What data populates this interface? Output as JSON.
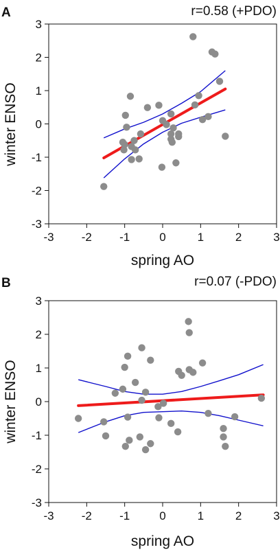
{
  "chart_data": [
    {
      "type": "scatter",
      "panel_label": "A",
      "annotation": "r=0.58 (+PDO)",
      "xlabel": "spring AO",
      "ylabel": "winter ENSO",
      "xlim": [
        -3,
        3
      ],
      "ylim": [
        -3,
        3
      ],
      "xticks": [
        "-3",
        "-2",
        "-1",
        "0",
        "1",
        "2",
        "3"
      ],
      "yticks": [
        "-3",
        "-2",
        "-1",
        "0",
        "1",
        "2",
        "3"
      ],
      "grid": false,
      "points": [
        [
          -1.55,
          -1.88
        ],
        [
          -1.05,
          -0.55
        ],
        [
          -1.02,
          -0.78
        ],
        [
          -1.0,
          -0.62
        ],
        [
          -0.98,
          0.26
        ],
        [
          -0.95,
          -0.1
        ],
        [
          -0.85,
          0.83
        ],
        [
          -0.82,
          -0.68
        ],
        [
          -0.82,
          -1.07
        ],
        [
          -0.75,
          -0.5
        ],
        [
          -0.72,
          -0.78
        ],
        [
          -0.62,
          -1.05
        ],
        [
          -0.58,
          -0.3
        ],
        [
          -0.4,
          0.49
        ],
        [
          -0.1,
          0.56
        ],
        [
          -0.02,
          -1.3
        ],
        [
          0.0,
          0.1
        ],
        [
          0.1,
          -0.02
        ],
        [
          0.22,
          0.3
        ],
        [
          0.22,
          -0.3
        ],
        [
          0.22,
          -0.46
        ],
        [
          0.25,
          -0.55
        ],
        [
          0.28,
          -0.12
        ],
        [
          0.35,
          -1.17
        ],
        [
          0.42,
          -0.3
        ],
        [
          0.42,
          -0.38
        ],
        [
          0.8,
          2.62
        ],
        [
          0.85,
          0.57
        ],
        [
          0.95,
          0.85
        ],
        [
          1.05,
          0.13
        ],
        [
          1.2,
          0.22
        ],
        [
          1.3,
          2.16
        ],
        [
          1.38,
          2.1
        ],
        [
          1.5,
          1.28
        ],
        [
          1.65,
          -0.37
        ]
      ],
      "fit": {
        "x": [
          -1.55,
          1.65
        ],
        "y": [
          -1.02,
          1.05
        ]
      },
      "ci_upper": {
        "x": [
          -1.55,
          -1.0,
          -0.5,
          0.0,
          0.5,
          1.0,
          1.65
        ],
        "y": [
          -0.42,
          -0.15,
          0.05,
          0.3,
          0.62,
          0.97,
          1.6
        ]
      },
      "ci_lower": {
        "x": [
          -1.55,
          -1.0,
          -0.5,
          0.0,
          0.5,
          1.0,
          1.65
        ],
        "y": [
          -1.62,
          -1.05,
          -0.6,
          -0.25,
          0.02,
          0.2,
          0.42
        ]
      },
      "colors": {
        "points": "#8c8c8c",
        "fit": "#ee1b1b",
        "ci": "#1010cc"
      }
    },
    {
      "type": "scatter",
      "panel_label": "B",
      "annotation": "r=0.07 (-PDO)",
      "xlabel": "spring AO",
      "ylabel": "winter ENSO",
      "xlim": [
        -3,
        3
      ],
      "ylim": [
        -3,
        3
      ],
      "xticks": [
        "-3",
        "-2",
        "-1",
        "0",
        "1",
        "2",
        "3"
      ],
      "yticks": [
        "-3",
        "-2",
        "-1",
        "0",
        "1",
        "2",
        "3"
      ],
      "grid": false,
      "points": [
        [
          -2.22,
          -0.5
        ],
        [
          -1.55,
          -0.6
        ],
        [
          -1.5,
          -1.02
        ],
        [
          -1.25,
          0.25
        ],
        [
          -1.05,
          0.37
        ],
        [
          -1.0,
          1.02
        ],
        [
          -0.98,
          -1.33
        ],
        [
          -0.92,
          1.35
        ],
        [
          -0.92,
          -0.46
        ],
        [
          -0.88,
          -1.15
        ],
        [
          -0.72,
          0.57
        ],
        [
          -0.6,
          -1.05
        ],
        [
          -0.55,
          1.6
        ],
        [
          -0.55,
          0.04
        ],
        [
          -0.45,
          0.28
        ],
        [
          -0.45,
          -1.43
        ],
        [
          -0.32,
          1.23
        ],
        [
          -0.32,
          -1.25
        ],
        [
          -0.12,
          -0.15
        ],
        [
          -0.1,
          -0.48
        ],
        [
          0.02,
          -0.05
        ],
        [
          0.22,
          -0.65
        ],
        [
          0.4,
          -0.9
        ],
        [
          0.42,
          0.9
        ],
        [
          0.5,
          0.78
        ],
        [
          0.68,
          2.38
        ],
        [
          0.7,
          2.05
        ],
        [
          0.7,
          0.95
        ],
        [
          0.8,
          0.87
        ],
        [
          1.05,
          1.15
        ],
        [
          1.2,
          -0.35
        ],
        [
          1.6,
          -0.8
        ],
        [
          1.6,
          -1.05
        ],
        [
          1.65,
          -1.33
        ],
        [
          1.9,
          -0.45
        ],
        [
          2.6,
          0.1
        ]
      ],
      "fit": {
        "x": [
          -2.22,
          2.65
        ],
        "y": [
          -0.12,
          0.2
        ]
      },
      "ci_upper": {
        "x": [
          -2.22,
          -1.5,
          -1.0,
          -0.5,
          0.0,
          0.5,
          1.0,
          1.5,
          2.0,
          2.65
        ],
        "y": [
          0.65,
          0.45,
          0.3,
          0.22,
          0.22,
          0.3,
          0.45,
          0.62,
          0.8,
          1.1
        ]
      },
      "ci_lower": {
        "x": [
          -2.22,
          -1.5,
          -1.0,
          -0.5,
          0.0,
          0.5,
          1.0,
          1.5,
          2.0,
          2.65
        ],
        "y": [
          -0.92,
          -0.6,
          -0.42,
          -0.32,
          -0.3,
          -0.28,
          -0.32,
          -0.42,
          -0.55,
          -0.72
        ]
      },
      "colors": {
        "points": "#8c8c8c",
        "fit": "#ee1b1b",
        "ci": "#1010cc"
      }
    }
  ]
}
